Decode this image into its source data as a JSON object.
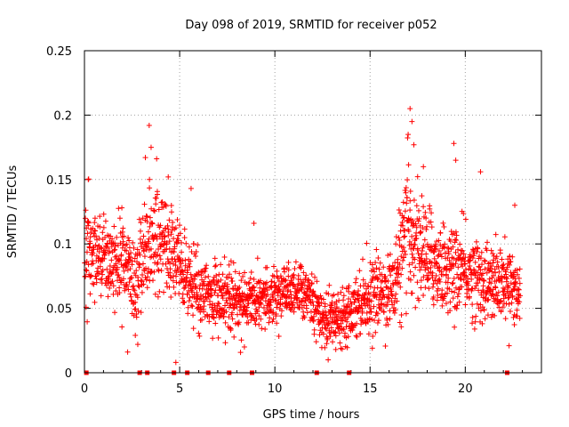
{
  "chart_data": {
    "type": "scatter",
    "title": "Day 098 of 2019, SRMTID for receiver p052",
    "xlabel": "GPS time / hours",
    "ylabel": "SRMTID / TECUs",
    "xlim": [
      0,
      24
    ],
    "ylim": [
      0,
      0.25
    ],
    "x_ticks": [
      0,
      5,
      10,
      15,
      20
    ],
    "x_tick_labels": [
      "0",
      "5",
      "10",
      "15",
      "20"
    ],
    "y_ticks": [
      0,
      0.05,
      0.1,
      0.15,
      0.2,
      0.25
    ],
    "y_tick_labels": [
      "0",
      "0.05",
      "0.1",
      "0.15",
      "0.2",
      "0.25"
    ],
    "grid": true,
    "marker": "+",
    "color": "#ff0000",
    "gap_markers_x": [
      0.1,
      2.9,
      3.3,
      4.7,
      5.4,
      6.5,
      7.6,
      8.8,
      12.2,
      13.9,
      22.2
    ],
    "trend": [
      {
        "x": 0.0,
        "y": 0.09,
        "s": 0.024
      },
      {
        "x": 1.0,
        "y": 0.088,
        "s": 0.022
      },
      {
        "x": 2.0,
        "y": 0.085,
        "s": 0.022
      },
      {
        "x": 2.7,
        "y": 0.065,
        "s": 0.02
      },
      {
        "x": 3.3,
        "y": 0.105,
        "s": 0.032
      },
      {
        "x": 4.0,
        "y": 0.1,
        "s": 0.025
      },
      {
        "x": 4.6,
        "y": 0.092,
        "s": 0.022
      },
      {
        "x": 5.2,
        "y": 0.075,
        "s": 0.022
      },
      {
        "x": 6.0,
        "y": 0.065,
        "s": 0.018
      },
      {
        "x": 7.0,
        "y": 0.058,
        "s": 0.017
      },
      {
        "x": 8.0,
        "y": 0.055,
        "s": 0.016
      },
      {
        "x": 9.0,
        "y": 0.057,
        "s": 0.016
      },
      {
        "x": 10.0,
        "y": 0.062,
        "s": 0.014
      },
      {
        "x": 11.0,
        "y": 0.064,
        "s": 0.014
      },
      {
        "x": 12.0,
        "y": 0.058,
        "s": 0.015
      },
      {
        "x": 12.7,
        "y": 0.04,
        "s": 0.013
      },
      {
        "x": 13.5,
        "y": 0.045,
        "s": 0.014
      },
      {
        "x": 14.5,
        "y": 0.056,
        "s": 0.016
      },
      {
        "x": 15.5,
        "y": 0.062,
        "s": 0.018
      },
      {
        "x": 16.2,
        "y": 0.065,
        "s": 0.02
      },
      {
        "x": 17.0,
        "y": 0.11,
        "s": 0.035
      },
      {
        "x": 18.0,
        "y": 0.09,
        "s": 0.025
      },
      {
        "x": 19.0,
        "y": 0.08,
        "s": 0.022
      },
      {
        "x": 20.0,
        "y": 0.078,
        "s": 0.022
      },
      {
        "x": 21.0,
        "y": 0.07,
        "s": 0.02
      },
      {
        "x": 22.0,
        "y": 0.068,
        "s": 0.02
      },
      {
        "x": 22.9,
        "y": 0.065,
        "s": 0.02
      }
    ],
    "peaks": [
      {
        "x": 3.4,
        "y": 0.192
      },
      {
        "x": 3.2,
        "y": 0.167
      },
      {
        "x": 3.5,
        "y": 0.175
      },
      {
        "x": 0.2,
        "y": 0.15
      },
      {
        "x": 4.4,
        "y": 0.152
      },
      {
        "x": 5.6,
        "y": 0.143
      },
      {
        "x": 8.9,
        "y": 0.116
      },
      {
        "x": 17.1,
        "y": 0.205
      },
      {
        "x": 17.2,
        "y": 0.195
      },
      {
        "x": 17.0,
        "y": 0.185
      },
      {
        "x": 17.3,
        "y": 0.177
      },
      {
        "x": 19.4,
        "y": 0.178
      },
      {
        "x": 19.5,
        "y": 0.165
      },
      {
        "x": 20.8,
        "y": 0.156
      },
      {
        "x": 22.6,
        "y": 0.13
      },
      {
        "x": 17.8,
        "y": 0.16
      },
      {
        "x": 2.8,
        "y": 0.022
      },
      {
        "x": 4.8,
        "y": 0.008
      },
      {
        "x": 12.8,
        "y": 0.01
      },
      {
        "x": 13.2,
        "y": 0.018
      },
      {
        "x": 8.4,
        "y": 0.02
      },
      {
        "x": 22.3,
        "y": 0.021
      }
    ],
    "time_end": 22.9,
    "time_step": 0.0208
  }
}
